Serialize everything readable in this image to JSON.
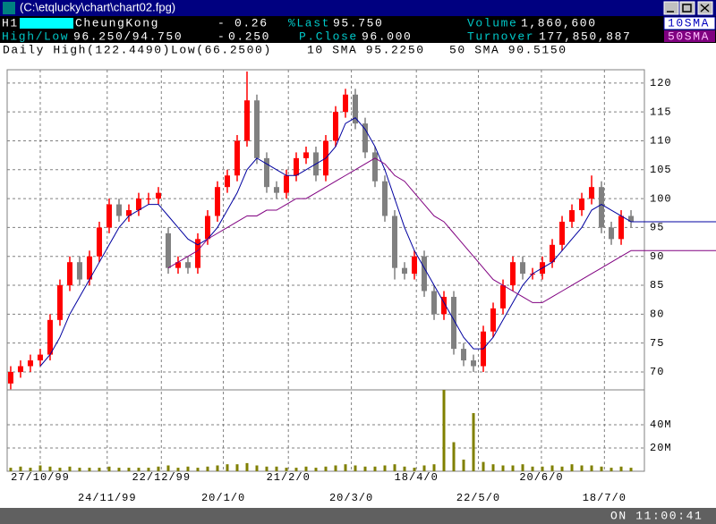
{
  "window": {
    "title": "(C:\\etqlucky\\chart\\chart02.fpg)",
    "status": "ON 11:00:41"
  },
  "header": {
    "row1": {
      "code": "H1",
      "name": "CheungKong",
      "sign": "-",
      "change": "0.26",
      "last_label": "%Last",
      "last": "95.750",
      "volume_label": "Volume",
      "volume": "1,860,600",
      "ma1": "10SMA"
    },
    "row2": {
      "hl_label": "High/Low",
      "hl": "96.250/94.750",
      "sign": "-",
      "change": "0.250",
      "pclose_label": "P.Close",
      "pclose": "96.000",
      "turnover_label": "Turnover",
      "turnover": "177,850,887",
      "ma2": "50SMA"
    },
    "row3": {
      "range": "Daily High(122.4490)Low(66.2500)",
      "ma1": "10 SMA 95.2250",
      "ma2": "50 SMA 90.5150"
    }
  },
  "chart_data": {
    "type": "candlestick",
    "xlim": [
      -0.36,
      64.36
    ],
    "xticks": [
      {
        "value": 3,
        "label": "27/10/99"
      },
      {
        "value": 9.8,
        "label": "24/11/99"
      },
      {
        "value": 15.3,
        "label": "22/12/99"
      },
      {
        "value": 21.6,
        "label": "20/1/0"
      },
      {
        "value": 28.2,
        "label": "21/2/0"
      },
      {
        "value": 34.6,
        "label": "20/3/0"
      },
      {
        "value": 41.2,
        "label": "18/4/0"
      },
      {
        "value": 47.5,
        "label": "22/5/0"
      },
      {
        "value": 53.9,
        "label": "20/6/0"
      },
      {
        "value": 60.3,
        "label": "18/7/0"
      }
    ],
    "ylim": [
      66.9,
      122.3
    ],
    "yticks": [
      70,
      75,
      80,
      85,
      90,
      95,
      100,
      105,
      110,
      115,
      120
    ],
    "vlim": [
      0,
      70
    ],
    "vticks": [
      {
        "value": 20,
        "label": "20M"
      },
      {
        "value": 40,
        "label": "40M"
      }
    ],
    "grid": true,
    "up_color": "#ff0000",
    "down_color": "#808080",
    "volume_color": "#808000",
    "open": [
      68,
      70,
      71,
      72,
      73,
      79,
      85,
      89,
      86,
      90,
      95,
      99,
      97,
      98,
      100,
      100,
      94,
      88,
      89,
      88,
      93,
      97,
      102,
      104,
      110,
      117,
      107,
      102,
      101,
      104,
      107,
      108,
      104,
      110,
      115,
      118,
      113,
      108,
      103,
      97,
      88,
      87,
      90,
      84,
      80,
      83,
      74,
      72,
      71,
      77,
      81,
      85,
      89,
      87,
      87,
      89,
      92,
      96,
      98,
      100,
      102,
      95,
      93,
      97
    ],
    "high": [
      71,
      72,
      73,
      74,
      80,
      86,
      90,
      90,
      91,
      96,
      100,
      100,
      99,
      101,
      101,
      102,
      95,
      90,
      90,
      94,
      98,
      103,
      105,
      111,
      122,
      118,
      108,
      103,
      105,
      108,
      109,
      109,
      111,
      116,
      119,
      119,
      114,
      109,
      104,
      98,
      89,
      91,
      91,
      85,
      84,
      84,
      75,
      73,
      78,
      82,
      86,
      90,
      90,
      88,
      90,
      93,
      97,
      99,
      101,
      104,
      103,
      96,
      98,
      98
    ],
    "low": [
      67,
      69,
      70,
      71,
      72,
      78,
      84,
      85,
      85,
      89,
      94,
      96,
      96,
      97,
      99,
      99,
      87,
      87,
      87,
      87,
      92,
      96,
      101,
      103,
      109,
      106,
      101,
      100,
      100,
      103,
      106,
      103,
      103,
      109,
      114,
      112,
      107,
      102,
      96,
      86,
      86,
      86,
      83,
      79,
      79,
      73,
      71,
      70,
      70,
      76,
      80,
      84,
      86,
      86,
      86,
      88,
      91,
      95,
      97,
      99,
      94,
      92,
      92,
      95
    ],
    "close": [
      70,
      71,
      72,
      73,
      79,
      85,
      89,
      86,
      90,
      95,
      99,
      97,
      98,
      100,
      100,
      101,
      88,
      89,
      88,
      93,
      97,
      102,
      104,
      110,
      117,
      107,
      102,
      101,
      104,
      107,
      108,
      104,
      110,
      115,
      118,
      113,
      108,
      103,
      97,
      88,
      87,
      90,
      84,
      80,
      83,
      74,
      72,
      71,
      77,
      81,
      85,
      89,
      87,
      87,
      89,
      92,
      96,
      98,
      100,
      102,
      95,
      93,
      97,
      96
    ],
    "volume": [
      3,
      4,
      3,
      5,
      4,
      3,
      4,
      3,
      3,
      3,
      4,
      3,
      3,
      3,
      3,
      4,
      5,
      3,
      4,
      3,
      4,
      5,
      6,
      6,
      7,
      5,
      4,
      4,
      3,
      3,
      4,
      3,
      4,
      5,
      6,
      5,
      4,
      4,
      5,
      6,
      4,
      3,
      5,
      6,
      70,
      25,
      10,
      50,
      8,
      6,
      5,
      5,
      6,
      4,
      4,
      5,
      4,
      6,
      5,
      5,
      4,
      3,
      4,
      3
    ],
    "series": [
      {
        "color": "#0000a0",
        "values": [
          null,
          null,
          null,
          71,
          73,
          76,
          80,
          83,
          86,
          89,
          92,
          95,
          97,
          98,
          99,
          99,
          97,
          95,
          93,
          92,
          93,
          95,
          98,
          101,
          105,
          107,
          106,
          105,
          104,
          104,
          105,
          106,
          107,
          109,
          113,
          114,
          112,
          109,
          105,
          100,
          95,
          91,
          88,
          85,
          82,
          79,
          76,
          74,
          74,
          76,
          79,
          82,
          85,
          87,
          88,
          89,
          91,
          93,
          95,
          98,
          99,
          98,
          97,
          96
        ]
      },
      {
        "color": "#800080",
        "values": [
          null,
          null,
          null,
          null,
          null,
          null,
          null,
          null,
          null,
          null,
          null,
          null,
          null,
          null,
          null,
          null,
          88,
          89,
          90,
          91,
          93,
          94,
          95,
          96,
          97,
          97,
          98,
          98,
          99,
          100,
          100,
          101,
          102,
          103,
          104,
          105,
          106,
          107,
          106,
          104,
          103,
          101,
          99,
          97,
          96,
          94,
          92,
          90,
          88,
          86,
          85,
          84,
          83,
          82,
          82,
          83,
          84,
          85,
          86,
          87,
          88,
          89,
          90,
          91
        ]
      }
    ]
  }
}
